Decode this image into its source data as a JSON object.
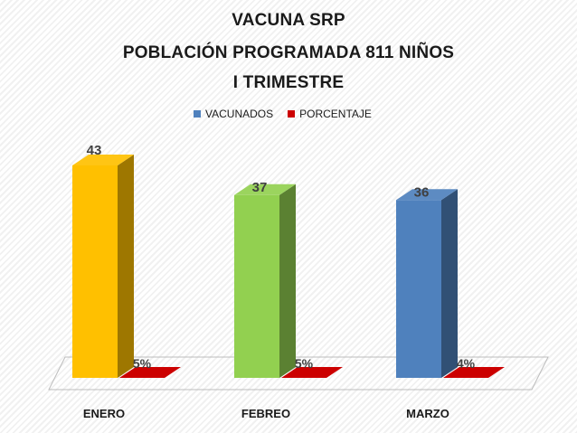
{
  "chart_data": {
    "type": "bar",
    "title_lines": [
      "VACUNA SRP",
      "POBLACIÓN PROGRAMADA 811 NIÑOS",
      "I TRIMESTRE"
    ],
    "categories": [
      "ENERO",
      "FEBREO",
      "MARZO"
    ],
    "series": [
      {
        "name": "VACUNADOS",
        "values": [
          43,
          37,
          36
        ],
        "labels": [
          "43",
          "37",
          "36"
        ],
        "colors": [
          "#FFC000",
          "#92D050",
          "#4F81BD"
        ],
        "legend_color": "#4F81BD"
      },
      {
        "name": "PORCENTAJE",
        "values": [
          5,
          5,
          4
        ],
        "labels": [
          "5%",
          "5%",
          "4%"
        ],
        "colors": [
          "#CC0000",
          "#CC0000",
          "#CC0000"
        ],
        "legend_color": "#CC0000"
      }
    ],
    "ylim": [
      0,
      45
    ],
    "grid": false,
    "legend_position": "top",
    "style": "3d-column"
  }
}
